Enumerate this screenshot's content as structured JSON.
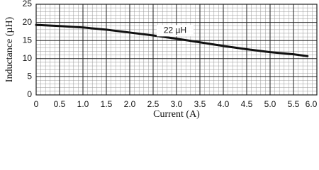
{
  "chart_data": {
    "type": "line",
    "x_label": "Current (A)",
    "y_label": "Inductance (µH)",
    "annotation": "22 µH",
    "x": [
      0,
      0.5,
      1.0,
      1.5,
      2.0,
      2.5,
      3.0,
      3.5,
      4.0,
      4.5,
      5.0,
      5.5,
      5.8
    ],
    "series": [
      {
        "color": "#111111",
        "values": [
          19.3,
          19.0,
          18.6,
          18.0,
          17.2,
          16.4,
          15.5,
          14.5,
          13.5,
          12.6,
          11.8,
          11.2,
          10.7
        ]
      }
    ],
    "xlim": [
      0,
      6.0
    ],
    "xticks": [
      0,
      0.5,
      {
        "value": 1,
        "label": "1.0"
      },
      1.5,
      {
        "value": 2,
        "label": "2.0"
      },
      2.5,
      {
        "value": 3,
        "label": "3.0"
      },
      3.5,
      {
        "value": 4,
        "label": "4.0"
      },
      4.5,
      {
        "value": 5,
        "label": "5.0"
      },
      5.5,
      {
        "value": 6,
        "label": "6.0"
      }
    ],
    "ylim": [
      0,
      25
    ],
    "yticks": [
      0,
      5,
      10,
      15,
      20,
      25
    ],
    "grid": true,
    "minor_divisions": [
      5,
      5
    ]
  }
}
